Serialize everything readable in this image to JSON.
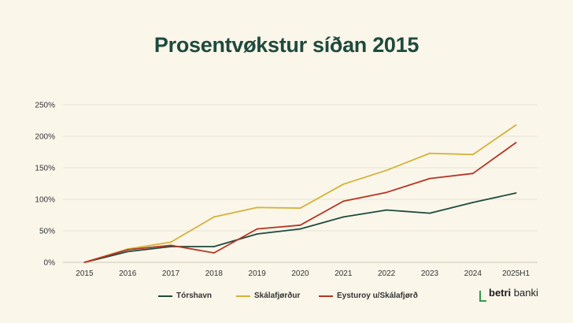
{
  "title": "Prosentvøkstur síðan 2015",
  "logo": {
    "bold": "betri",
    "rest": " banki"
  },
  "colors": {
    "background": "#faf6ea",
    "title": "#1f4a3d",
    "grid": "#e6e1d3"
  },
  "chart_data": {
    "type": "line",
    "title": "Prosentvøkstur síðan 2015",
    "categories": [
      "2015",
      "2016",
      "2017",
      "2018",
      "2019",
      "2020",
      "2021",
      "2022",
      "2023",
      "2024",
      "2025H1"
    ],
    "ylim": [
      0,
      250
    ],
    "yticks": [
      0,
      50,
      100,
      150,
      200,
      250
    ],
    "ytick_labels": [
      "0%",
      "50%",
      "100%",
      "150%",
      "200%",
      "250%"
    ],
    "grid": true,
    "legend_position": "bottom",
    "series": [
      {
        "name": "Tórshavn",
        "color": "#1f4a3d",
        "values": [
          0,
          17,
          25,
          25,
          45,
          53,
          72,
          83,
          78,
          95,
          110
        ]
      },
      {
        "name": "Skálafjørður",
        "color": "#d4b23a",
        "values": [
          0,
          21,
          32,
          72,
          87,
          86,
          124,
          146,
          173,
          171,
          218
        ]
      },
      {
        "name": "Eysturoy u/Skálafjørð",
        "color": "#b73523",
        "values": [
          0,
          20,
          27,
          15,
          53,
          59,
          97,
          111,
          133,
          141,
          190
        ]
      }
    ]
  }
}
